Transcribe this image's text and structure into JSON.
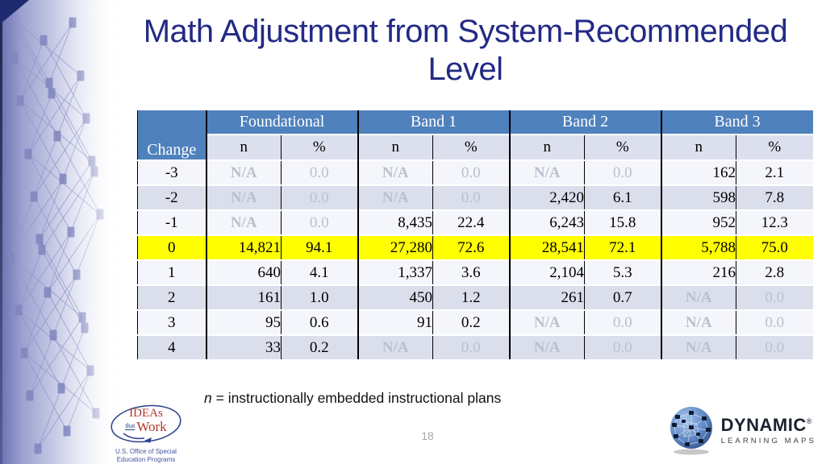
{
  "slide": {
    "title": [
      "Math Adjustment from System-Recommended",
      "Level"
    ],
    "page_number": "18",
    "footnote_var": "n",
    "footnote_text": "= instructionally embedded instructional plans"
  },
  "table": {
    "change_header": "Change",
    "bands": [
      "Foundational",
      "Band 1",
      "Band 2",
      "Band 3"
    ],
    "sub_headers": [
      "n",
      "%"
    ],
    "rows": [
      {
        "change": "-3",
        "highlight": false,
        "cells": [
          {
            "v": "N/A",
            "dark": true
          },
          {
            "v": "0.0",
            "dark": true
          },
          {
            "v": "N/A",
            "dark": true
          },
          {
            "v": "0.0",
            "dark": true
          },
          {
            "v": "N/A",
            "dark": true
          },
          {
            "v": "0.0",
            "dark": true
          },
          {
            "v": "162",
            "dark": false
          },
          {
            "v": "2.1",
            "dark": false
          }
        ]
      },
      {
        "change": "-2",
        "highlight": false,
        "cells": [
          {
            "v": "N/A",
            "dark": true
          },
          {
            "v": "0.0",
            "dark": true
          },
          {
            "v": "N/A",
            "dark": true
          },
          {
            "v": "0.0",
            "dark": true
          },
          {
            "v": "2,420",
            "dark": false
          },
          {
            "v": "6.1",
            "dark": false
          },
          {
            "v": "598",
            "dark": false
          },
          {
            "v": "7.8",
            "dark": false
          }
        ]
      },
      {
        "change": "-1",
        "highlight": false,
        "cells": [
          {
            "v": "N/A",
            "dark": true
          },
          {
            "v": "0.0",
            "dark": true
          },
          {
            "v": "8,435",
            "dark": false
          },
          {
            "v": "22.4",
            "dark": false
          },
          {
            "v": "6,243",
            "dark": false
          },
          {
            "v": "15.8",
            "dark": false
          },
          {
            "v": "952",
            "dark": false
          },
          {
            "v": "12.3",
            "dark": false
          }
        ]
      },
      {
        "change": "0",
        "highlight": true,
        "cells": [
          {
            "v": "14,821",
            "dark": false
          },
          {
            "v": "94.1",
            "dark": false
          },
          {
            "v": "27,280",
            "dark": false
          },
          {
            "v": "72.6",
            "dark": false
          },
          {
            "v": "28,541",
            "dark": false
          },
          {
            "v": "72.1",
            "dark": false
          },
          {
            "v": "5,788",
            "dark": false
          },
          {
            "v": "75.0",
            "dark": false
          }
        ]
      },
      {
        "change": "1",
        "highlight": false,
        "cells": [
          {
            "v": "640",
            "dark": false
          },
          {
            "v": "4.1",
            "dark": false
          },
          {
            "v": "1,337",
            "dark": false
          },
          {
            "v": "3.6",
            "dark": false
          },
          {
            "v": "2,104",
            "dark": false
          },
          {
            "v": "5.3",
            "dark": false
          },
          {
            "v": "216",
            "dark": false
          },
          {
            "v": "2.8",
            "dark": false
          }
        ]
      },
      {
        "change": "2",
        "highlight": false,
        "cells": [
          {
            "v": "161",
            "dark": false
          },
          {
            "v": "1.0",
            "dark": false
          },
          {
            "v": "450",
            "dark": false
          },
          {
            "v": "1.2",
            "dark": false
          },
          {
            "v": "261",
            "dark": false
          },
          {
            "v": "0.7",
            "dark": false
          },
          {
            "v": "N/A",
            "dark": true
          },
          {
            "v": "0.0",
            "dark": true
          }
        ]
      },
      {
        "change": "3",
        "highlight": false,
        "cells": [
          {
            "v": "95",
            "dark": false
          },
          {
            "v": "0.6",
            "dark": false
          },
          {
            "v": "91",
            "dark": false
          },
          {
            "v": "0.2",
            "dark": false
          },
          {
            "v": "N/A",
            "dark": true
          },
          {
            "v": "0.0",
            "dark": true
          },
          {
            "v": "N/A",
            "dark": true
          },
          {
            "v": "0.0",
            "dark": true
          }
        ]
      },
      {
        "change": "4",
        "highlight": false,
        "cells": [
          {
            "v": "33",
            "dark": false
          },
          {
            "v": "0.2",
            "dark": false
          },
          {
            "v": "N/A",
            "dark": true
          },
          {
            "v": "0.0",
            "dark": true
          },
          {
            "v": "N/A",
            "dark": true
          },
          {
            "v": "0.0",
            "dark": true
          },
          {
            "v": "N/A",
            "dark": true
          },
          {
            "v": "0.0",
            "dark": true
          }
        ]
      }
    ]
  },
  "footer": {
    "ideas_logo": {
      "ideas": "IDEAs",
      "that": "that",
      "work": "Work",
      "caption1": "U.S. Office of Special",
      "caption2": "Education Programs"
    },
    "dlm_logo": {
      "name": "DYNAMIC",
      "reg": "®",
      "tagline": "LEARNING MAPS"
    }
  },
  "colors": {
    "header_blue": "#4f81bd",
    "dark_cell": "#25485f",
    "row_alt_lavender": "#dbdfec",
    "highlight_yellow": "#ffff00",
    "title_navy": "#232a85"
  }
}
